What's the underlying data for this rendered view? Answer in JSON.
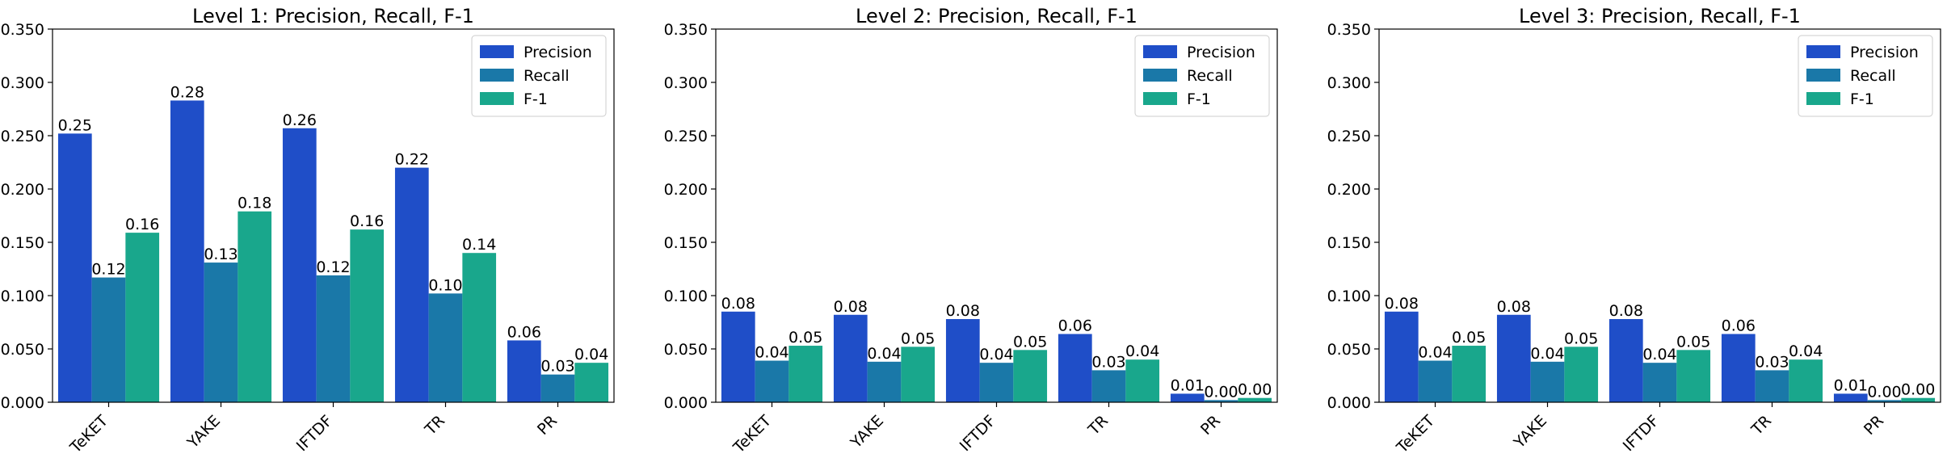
{
  "chart_data": [
    {
      "type": "bar",
      "title": "Level 1: Precision, Recall, F-1",
      "categories": [
        "TeKET",
        "YAKE",
        "IFTDF",
        "TR",
        "PR"
      ],
      "series": [
        {
          "name": "Precision",
          "values": [
            0.252,
            0.283,
            0.257,
            0.22,
            0.058
          ],
          "labels": [
            "0.25",
            "0.28",
            "0.26",
            "0.22",
            "0.06"
          ]
        },
        {
          "name": "Recall",
          "values": [
            0.117,
            0.131,
            0.119,
            0.102,
            0.026
          ],
          "labels": [
            "0.12",
            "0.13",
            "0.12",
            "0.10",
            "0.03"
          ]
        },
        {
          "name": "F-1",
          "values": [
            0.159,
            0.179,
            0.162,
            0.14,
            0.037
          ],
          "labels": [
            "0.16",
            "0.18",
            "0.16",
            "0.14",
            "0.04"
          ]
        }
      ],
      "ylim": [
        0,
        0.35
      ],
      "yticks": [
        "0.000",
        "0.050",
        "0.100",
        "0.150",
        "0.200",
        "0.250",
        "0.300",
        "0.350"
      ],
      "legend_position": "top-right",
      "grid": false
    },
    {
      "type": "bar",
      "title": "Level 2: Precision, Recall, F-1",
      "categories": [
        "TeKET",
        "YAKE",
        "IFTDF",
        "TR",
        "PR"
      ],
      "series": [
        {
          "name": "Precision",
          "values": [
            0.085,
            0.082,
            0.078,
            0.064,
            0.008
          ],
          "labels": [
            "0.08",
            "0.08",
            "0.08",
            "0.06",
            "0.01"
          ]
        },
        {
          "name": "Recall",
          "values": [
            0.039,
            0.038,
            0.037,
            0.03,
            0.002
          ],
          "labels": [
            "0.04",
            "0.04",
            "0.04",
            "0.03",
            "0.00"
          ]
        },
        {
          "name": "F-1",
          "values": [
            0.053,
            0.052,
            0.049,
            0.04,
            0.004
          ],
          "labels": [
            "0.05",
            "0.05",
            "0.05",
            "0.04",
            "0.00"
          ]
        }
      ],
      "ylim": [
        0,
        0.35
      ],
      "yticks": [
        "0.000",
        "0.050",
        "0.100",
        "0.150",
        "0.200",
        "0.250",
        "0.300",
        "0.350"
      ],
      "legend_position": "top-right",
      "grid": false
    },
    {
      "type": "bar",
      "title": "Level 3: Precision, Recall, F-1",
      "categories": [
        "TeKET",
        "YAKE",
        "IFTDF",
        "TR",
        "PR"
      ],
      "series": [
        {
          "name": "Precision",
          "values": [
            0.085,
            0.082,
            0.078,
            0.064,
            0.008
          ],
          "labels": [
            "0.08",
            "0.08",
            "0.08",
            "0.06",
            "0.01"
          ]
        },
        {
          "name": "Recall",
          "values": [
            0.039,
            0.038,
            0.037,
            0.03,
            0.002
          ],
          "labels": [
            "0.04",
            "0.04",
            "0.04",
            "0.03",
            "0.00"
          ]
        },
        {
          "name": "F-1",
          "values": [
            0.053,
            0.052,
            0.049,
            0.04,
            0.004
          ],
          "labels": [
            "0.05",
            "0.05",
            "0.05",
            "0.04",
            "0.00"
          ]
        }
      ],
      "ylim": [
        0,
        0.35
      ],
      "yticks": [
        "0.000",
        "0.050",
        "0.100",
        "0.150",
        "0.200",
        "0.250",
        "0.300",
        "0.350"
      ],
      "legend_position": "top-right",
      "grid": false
    }
  ],
  "colors": {
    "precision": "#1f4ec8",
    "recall": "#1a78a8",
    "f1": "#19a78c"
  }
}
